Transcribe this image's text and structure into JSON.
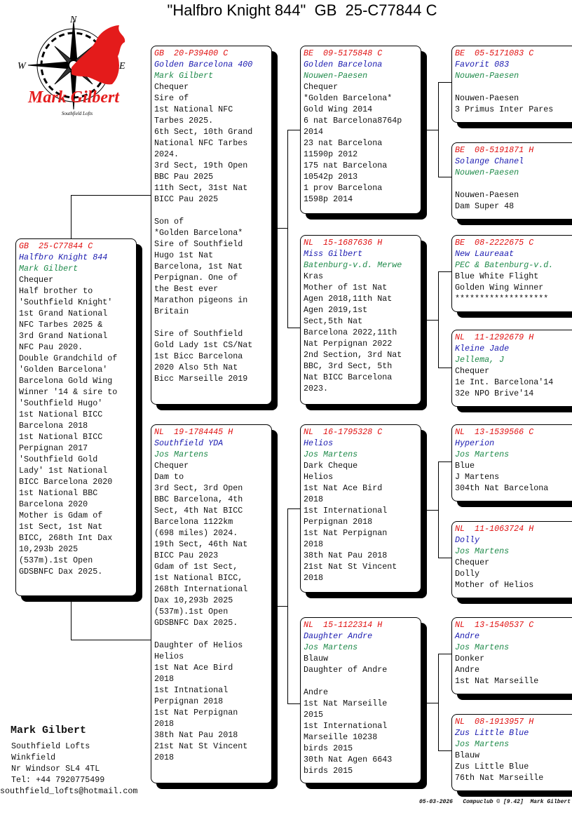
{
  "title": "\"Halfbro Knight 844\"  GB  25-C77844 C",
  "logo": {
    "text": "Mark Gilbert",
    "subtext": "Southfield Lofts",
    "compass": [
      "N",
      "W",
      "E"
    ],
    "accent": "#e41b1b"
  },
  "colors": {
    "ring": "#e01010",
    "name": "#1a1ab0",
    "breeder": "#1f8a4a"
  },
  "boxes": [
    {
      "id": "subject",
      "ring": "GB  25-C77844 C",
      "name": "Halfbro Knight 844",
      "breeder": "Mark Gilbert",
      "details": [
        "Chequer",
        "Half brother to",
        "'Southfield Knight'",
        "1st Grand National",
        "NFC Tarbes 2025 &",
        "3rd Grand National",
        "NFC Pau 2020.",
        "Double Grandchild of",
        "'Golden Barcelona'",
        "Barcelona Gold Wing",
        "Winner '14 & sire to",
        "'Southfield Hugo'",
        "1st National BICC",
        "Barcelona 2018",
        "1st National BICC",
        "Perpignan 2017",
        "'Southfield Gold",
        "Lady' 1st National",
        "BICC Barcelona 2020",
        "1st National BBC",
        "Barcelona 2020",
        "Mother is Gdam of",
        "1st Sect, 1st Nat",
        "BICC, 268th Int Dax",
        "10,293b 2025",
        "(537m).1st Open",
        "GDSBNFC Dax 2025."
      ]
    },
    {
      "id": "sire",
      "ring": "GB  20-P39400 C",
      "name": "Golden Barcelona 400",
      "breeder": "Mark Gilbert",
      "details": [
        "Chequer",
        "Sire of",
        "1st National NFC",
        "Tarbes 2025.",
        "6th Sect, 10th Grand",
        "National NFC Tarbes",
        "2024.",
        "3rd Sect, 19th Open",
        "BBC Pau 2025",
        "11th Sect, 31st Nat",
        "BICC Pau 2025",
        "",
        "Son of",
        "*Golden Barcelona*",
        "Sire of Southfield",
        "Hugo 1st Nat",
        "Barcelona, 1st Nat",
        "Perpignan. One of",
        "the Best ever",
        "Marathon pigeons in",
        "Britain",
        "",
        "Sire of Southfield",
        "Gold Lady 1st CS/Nat",
        "1st Bicc Barcelona",
        "2020 Also 5th Nat",
        "Bicc Marseille 2019"
      ]
    },
    {
      "id": "dam",
      "ring": "NL  19-1784445 H",
      "name": "Southfield YDA",
      "breeder": "Jos Martens",
      "details": [
        "Chequer",
        "Dam to",
        "3rd Sect, 3rd Open",
        "BBC Barcelona, 4th",
        "Sect, 4th Nat BICC",
        "Barcelona 1122km",
        "(698 miles) 2024.",
        "19th Sect, 46th Nat",
        "BICC Pau 2023",
        "Gdam of 1st Sect,",
        "1st National BICC,",
        "268th International",
        "Dax 10,293b 2025",
        "(537m).1st Open",
        "GDSBNFC Dax 2025.",
        "",
        "Daughter of Helios",
        "Helios",
        "1st Nat Ace Bird",
        "2018",
        "1st Intnational",
        "Perpignan 2018",
        "1st Nat Perpignan",
        "2018",
        "38th Nat Pau 2018",
        "21st Nat St Vincent",
        "2018"
      ]
    },
    {
      "id": "ss",
      "ring": "BE  09-5175848 C",
      "name": "Golden Barcelona",
      "breeder": "Nouwen-Paesen",
      "details": [
        "Chequer",
        "*Golden Barcelona*",
        "Gold Wing 2014",
        "6 nat Barcelona8764p",
        "2014",
        "23 nat Barcelona",
        "11590p 2012",
        "175 nat Barcelona",
        "10542p 2013",
        "1 prov Barcelona",
        "1598p 2014"
      ]
    },
    {
      "id": "sd",
      "ring": "NL  15-1687636 H",
      "name": "Miss Gilbert",
      "breeder": "Batenburg-v.d. Merwe",
      "details": [
        "Kras",
        "Mother of 1st Nat",
        "Agen 2018,11th Nat",
        "Agen 2019,1st",
        "Sect,5th Nat",
        "Barcelona 2022,11th",
        "Nat Perpignan 2022",
        "2nd Section, 3rd Nat",
        "BBC, 3rd Sect, 5th",
        "Nat BICC Barcelona",
        "2023."
      ]
    },
    {
      "id": "ds",
      "ring": "NL  16-1795328 C",
      "name": "Helios",
      "breeder": "Jos Martens",
      "details": [
        "Dark Cheque",
        "Helios",
        "1st Nat Ace Bird",
        "2018",
        "1st International",
        "Perpignan 2018",
        "1st Nat Perpignan",
        "2018",
        "38th Nat Pau 2018",
        "21st Nat St Vincent",
        "2018"
      ]
    },
    {
      "id": "dd",
      "ring": "NL  15-1122314 H",
      "name": "Daughter Andre",
      "breeder": "Jos Martens",
      "details": [
        "Blauw",
        "Daughter of Andre",
        "",
        "Andre",
        "1st Nat Marseille",
        "2015",
        "1st International",
        "Marseille 10238",
        "birds 2015",
        "30th Nat Agen 6643",
        "birds 2015"
      ]
    },
    {
      "id": "sss",
      "ring": "BE  05-5171083 C",
      "name": "Favorit 083",
      "breeder": "Nouwen-Paesen",
      "details": [
        "",
        "Nouwen-Paesen",
        "3 Primus Inter Pares"
      ]
    },
    {
      "id": "ssd",
      "ring": "BE  08-5191871 H",
      "name": "Solange Chanel",
      "breeder": "Nouwen-Paesen",
      "details": [
        "",
        "Nouwen-Paesen",
        "Dam Super 48"
      ]
    },
    {
      "id": "sds",
      "ring": "BE  08-2222675 C",
      "name": "New Laureaat",
      "breeder": "PEC & Batenburg-v.d.",
      "details": [
        "Blue White Flight",
        "Golden Wing Winner",
        "*******************"
      ]
    },
    {
      "id": "sdd",
      "ring": "NL  11-1292679 H",
      "name": "Kleine Jade",
      "breeder": "Jellema, J",
      "details": [
        "Chequer",
        "1e Int. Barcelona'14",
        "32e NPO Brive'14"
      ]
    },
    {
      "id": "dss",
      "ring": "NL  13-1539566 C",
      "name": "Hyperion",
      "breeder": "Jos Martens",
      "details": [
        "Blue",
        "J Martens",
        "304th Nat Barcelona"
      ]
    },
    {
      "id": "dsd",
      "ring": "NL  11-1063724 H",
      "name": "Dolly",
      "breeder": "Jos Martens",
      "details": [
        "Chequer",
        "Dolly",
        "Mother of Helios"
      ]
    },
    {
      "id": "dds",
      "ring": "NL  13-1540537 C",
      "name": "Andre",
      "breeder": "Jos Martens",
      "details": [
        "Donker",
        "Andre",
        "1st Nat Marseille"
      ]
    },
    {
      "id": "ddd",
      "ring": "NL  08-1913957 H",
      "name": "Zus Little Blue",
      "breeder": "Jos Martens",
      "details": [
        "Blauw",
        "Zus Little Blue",
        "76th Nat Marseille"
      ]
    }
  ],
  "contact": {
    "name": "Mark Gilbert",
    "lines": [
      "Southfield Lofts",
      "Winkfield",
      "Nr Windsor SL4 4TL",
      "Tel: +44 7920775499"
    ],
    "email": "southfield_lofts@hotmail.com"
  },
  "footer": "05-03-2026   Compuclub © [9.42]  Mark Gilbert"
}
